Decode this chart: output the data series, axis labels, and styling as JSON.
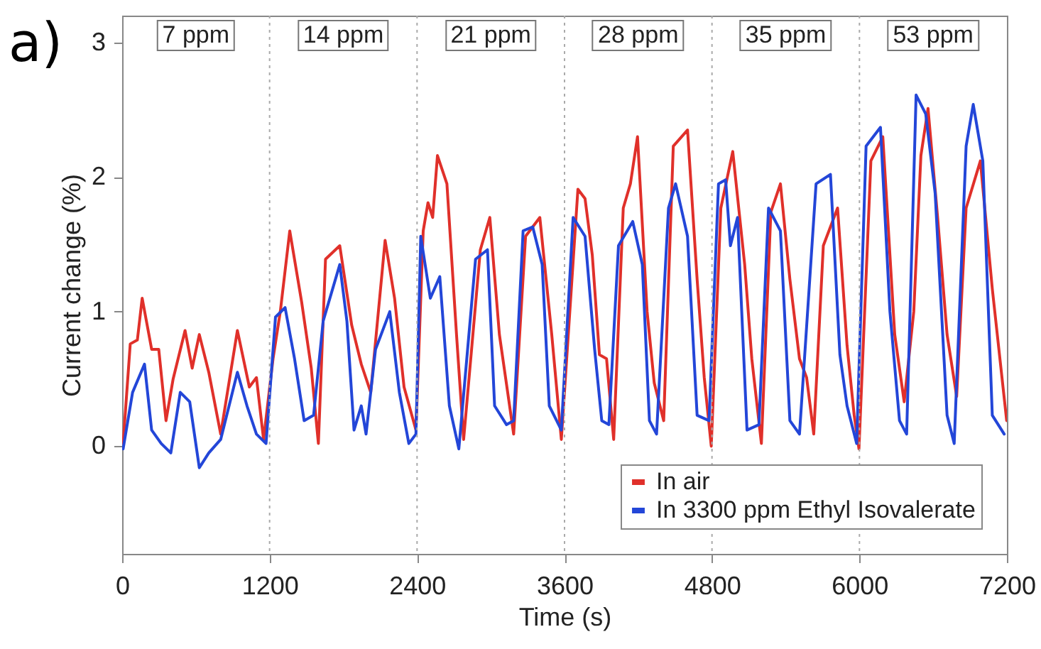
{
  "chart_data": {
    "type": "line",
    "xlabel": "Time (s)",
    "ylabel": "Current change (%)",
    "xlim": [
      0,
      7200
    ],
    "xticks": [
      0,
      1200,
      2400,
      3600,
      4800,
      6000,
      7200
    ],
    "ylim": [
      -0.8,
      3.2
    ],
    "yticks": [
      0,
      1,
      2,
      3
    ],
    "grid": false,
    "legend": "bottom right",
    "line_style": "solid",
    "marker": "none",
    "ref_lines": [
      {
        "axis": "x",
        "value": 1200,
        "color": "#aaaaaa",
        "line_style": "dotted"
      },
      {
        "axis": "x",
        "value": 2400,
        "color": "#aaaaaa",
        "line_style": "dotted"
      },
      {
        "axis": "x",
        "value": 3600,
        "color": "#aaaaaa",
        "line_style": "dotted"
      },
      {
        "axis": "x",
        "value": 4800,
        "color": "#aaaaaa",
        "line_style": "dotted"
      },
      {
        "axis": "x",
        "value": 6000,
        "color": "#aaaaaa",
        "line_style": "dotted"
      }
    ],
    "annotations": [
      "a)",
      "7 ppm",
      "14 ppm",
      "21 ppm",
      "28 ppm",
      "35 ppm",
      "53 ppm"
    ],
    "series": [
      {
        "name": "In air",
        "color": "#e0302a",
        "x": [
          8,
          66,
          124,
          163,
          240,
          298,
          357,
          415,
          512,
          570,
          628,
          705,
          802,
          938,
          1035,
          1093,
          1151,
          1228,
          1287,
          1364,
          1461,
          1539,
          1597,
          1655,
          1771,
          1868,
          1946,
          2023,
          2140,
          2217,
          2294,
          2391,
          2450,
          2489,
          2527,
          2566,
          2643,
          2721,
          2779,
          2915,
          2992,
          3070,
          3186,
          3283,
          3399,
          3496,
          3574,
          3709,
          3767,
          3826,
          3884,
          3942,
          4000,
          4078,
          4136,
          4194,
          4272,
          4330,
          4407,
          4485,
          4601,
          4679,
          4737,
          4794,
          4872,
          4969,
          5066,
          5124,
          5202,
          5279,
          5357,
          5434,
          5512,
          5570,
          5628,
          5706,
          5764,
          5822,
          5899,
          5957,
          5996,
          6093,
          6190,
          6287,
          6364,
          6442,
          6500,
          6558,
          6636,
          6713,
          6791,
          6868,
          6984,
          7081,
          7198
        ],
        "values": [
          0.02,
          0.76,
          0.79,
          1.1,
          0.72,
          0.72,
          0.19,
          0.5,
          0.86,
          0.58,
          0.83,
          0.55,
          0.09,
          0.86,
          0.44,
          0.51,
          0.05,
          0.65,
          1.0,
          1.6,
          1.07,
          0.58,
          0.02,
          1.39,
          1.49,
          0.9,
          0.61,
          0.4,
          1.53,
          1.1,
          0.44,
          0.12,
          1.6,
          1.81,
          1.7,
          2.16,
          1.95,
          0.83,
          0.05,
          1.46,
          1.7,
          0.83,
          0.09,
          1.56,
          1.7,
          0.83,
          0.05,
          1.91,
          1.84,
          1.42,
          0.68,
          0.65,
          0.05,
          1.77,
          1.95,
          2.3,
          1.0,
          0.47,
          0.19,
          2.23,
          2.35,
          1.24,
          0.51,
          0.0,
          1.77,
          2.19,
          1.35,
          0.65,
          0.02,
          1.74,
          1.95,
          1.24,
          0.65,
          0.51,
          0.09,
          1.49,
          1.63,
          1.77,
          0.75,
          0.23,
          -0.02,
          2.12,
          2.3,
          0.83,
          0.33,
          1.0,
          2.16,
          2.51,
          1.7,
          0.83,
          0.37,
          1.77,
          2.12,
          1.17,
          0.19
        ]
      },
      {
        "name": "In 3300 ppm Ethyl Isovalerate",
        "color": "#2346d8",
        "x": [
          8,
          85,
          182,
          240,
          318,
          396,
          473,
          550,
          628,
          705,
          802,
          938,
          1016,
          1093,
          1171,
          1248,
          1326,
          1403,
          1481,
          1558,
          1636,
          1771,
          1829,
          1887,
          1946,
          1985,
          2062,
          2178,
          2256,
          2333,
          2391,
          2430,
          2508,
          2585,
          2663,
          2740,
          2876,
          2973,
          3031,
          3128,
          3186,
          3263,
          3341,
          3418,
          3476,
          3574,
          3670,
          3767,
          3845,
          3903,
          3961,
          4039,
          4155,
          4233,
          4291,
          4349,
          4446,
          4504,
          4601,
          4679,
          4776,
          4853,
          4911,
          4950,
          5008,
          5085,
          5182,
          5260,
          5357,
          5434,
          5512,
          5647,
          5764,
          5841,
          5899,
          5977,
          6054,
          6171,
          6248,
          6326,
          6384,
          6461,
          6539,
          6616,
          6713,
          6771,
          6868,
          6926,
          7004,
          7081,
          7178
        ],
        "values": [
          -0.02,
          0.4,
          0.61,
          0.12,
          0.02,
          -0.05,
          0.4,
          0.33,
          -0.16,
          -0.05,
          0.05,
          0.55,
          0.3,
          0.09,
          0.02,
          0.96,
          1.03,
          0.65,
          0.19,
          0.23,
          0.93,
          1.35,
          0.93,
          0.12,
          0.3,
          0.09,
          0.72,
          1.0,
          0.4,
          0.02,
          0.09,
          1.56,
          1.1,
          1.26,
          0.3,
          -0.02,
          1.39,
          1.46,
          0.3,
          0.16,
          0.19,
          1.6,
          1.63,
          1.35,
          0.3,
          0.12,
          1.7,
          1.56,
          0.72,
          0.19,
          0.16,
          1.49,
          1.67,
          1.35,
          0.19,
          0.09,
          1.77,
          1.95,
          1.56,
          0.23,
          0.19,
          1.95,
          1.98,
          1.49,
          1.7,
          0.12,
          0.16,
          1.77,
          1.6,
          0.19,
          0.09,
          1.95,
          2.02,
          0.68,
          0.3,
          0.02,
          2.23,
          2.37,
          1.0,
          0.19,
          0.09,
          2.61,
          2.47,
          1.88,
          0.23,
          0.02,
          2.23,
          2.54,
          2.12,
          0.23,
          0.09
        ]
      }
    ]
  }
}
